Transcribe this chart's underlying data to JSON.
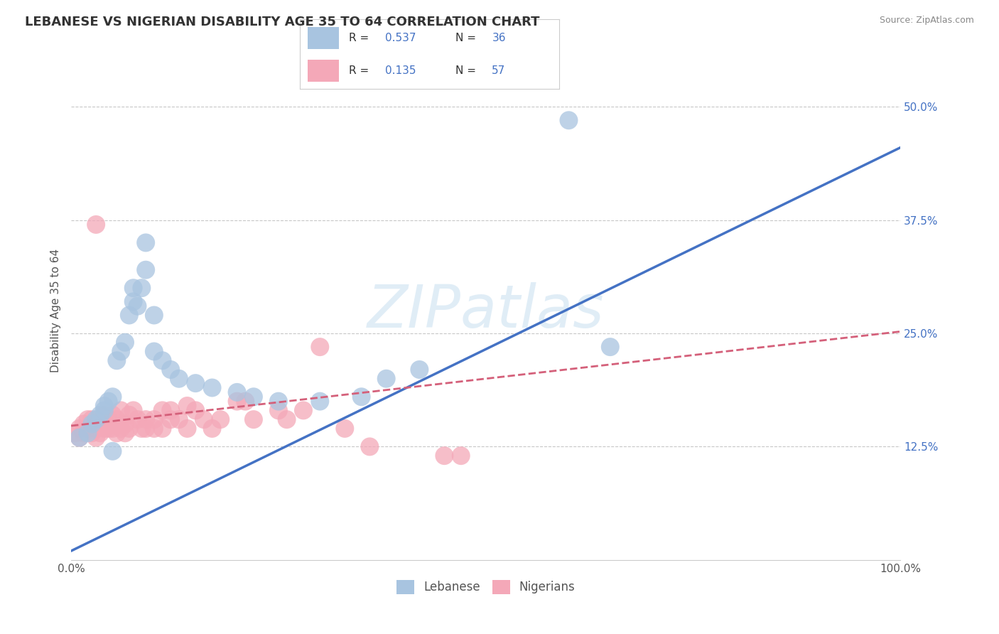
{
  "title": "LEBANESE VS NIGERIAN DISABILITY AGE 35 TO 64 CORRELATION CHART",
  "source": "Source: ZipAtlas.com",
  "xlabel": "",
  "ylabel": "Disability Age 35 to 64",
  "xlim": [
    0.0,
    1.0
  ],
  "ylim": [
    0.0,
    0.55
  ],
  "ytick_positions": [
    0.125,
    0.25,
    0.375,
    0.5
  ],
  "grid_color": "#c8c8c8",
  "background_color": "#ffffff",
  "watermark_text": "ZIPatlas",
  "lebanese_color": "#a8c4e0",
  "nigerian_color": "#f4a8b8",
  "lebanese_line_color": "#4472c4",
  "nigerian_line_color": "#d4607a",
  "legend_r_lebanese": "0.537",
  "legend_n_lebanese": "36",
  "legend_r_nigerian": "0.135",
  "legend_n_nigerian": "57",
  "leb_line_x0": 0.0,
  "leb_line_y0": 0.01,
  "leb_line_x1": 1.0,
  "leb_line_y1": 0.455,
  "nig_line_x0": 0.0,
  "nig_line_y0": 0.148,
  "nig_line_x1": 1.0,
  "nig_line_y1": 0.252,
  "lebanese_x": [
    0.01,
    0.02,
    0.025,
    0.03,
    0.035,
    0.04,
    0.04,
    0.045,
    0.05,
    0.055,
    0.06,
    0.065,
    0.07,
    0.075,
    0.075,
    0.08,
    0.085,
    0.09,
    0.09,
    0.1,
    0.1,
    0.11,
    0.12,
    0.13,
    0.15,
    0.17,
    0.2,
    0.22,
    0.25,
    0.3,
    0.35,
    0.38,
    0.42,
    0.6,
    0.65,
    0.05
  ],
  "lebanese_y": [
    0.135,
    0.14,
    0.15,
    0.155,
    0.16,
    0.165,
    0.17,
    0.175,
    0.18,
    0.22,
    0.23,
    0.24,
    0.27,
    0.285,
    0.3,
    0.28,
    0.3,
    0.32,
    0.35,
    0.27,
    0.23,
    0.22,
    0.21,
    0.2,
    0.195,
    0.19,
    0.185,
    0.18,
    0.175,
    0.175,
    0.18,
    0.2,
    0.21,
    0.485,
    0.235,
    0.12
  ],
  "nigerian_x": [
    0.005,
    0.01,
    0.01,
    0.015,
    0.015,
    0.02,
    0.02,
    0.025,
    0.025,
    0.03,
    0.03,
    0.035,
    0.035,
    0.04,
    0.04,
    0.045,
    0.045,
    0.05,
    0.05,
    0.055,
    0.055,
    0.06,
    0.06,
    0.065,
    0.065,
    0.07,
    0.07,
    0.075,
    0.08,
    0.085,
    0.09,
    0.09,
    0.1,
    0.1,
    0.11,
    0.11,
    0.12,
    0.12,
    0.13,
    0.14,
    0.14,
    0.15,
    0.16,
    0.17,
    0.18,
    0.2,
    0.21,
    0.22,
    0.25,
    0.26,
    0.28,
    0.3,
    0.33,
    0.36,
    0.45,
    0.47,
    0.03
  ],
  "nigerian_y": [
    0.14,
    0.145,
    0.135,
    0.15,
    0.14,
    0.155,
    0.145,
    0.14,
    0.155,
    0.145,
    0.135,
    0.15,
    0.14,
    0.16,
    0.145,
    0.155,
    0.145,
    0.16,
    0.145,
    0.155,
    0.14,
    0.165,
    0.145,
    0.15,
    0.14,
    0.16,
    0.145,
    0.165,
    0.155,
    0.145,
    0.155,
    0.145,
    0.155,
    0.145,
    0.165,
    0.145,
    0.155,
    0.165,
    0.155,
    0.17,
    0.145,
    0.165,
    0.155,
    0.145,
    0.155,
    0.175,
    0.175,
    0.155,
    0.165,
    0.155,
    0.165,
    0.235,
    0.145,
    0.125,
    0.115,
    0.115,
    0.37
  ]
}
